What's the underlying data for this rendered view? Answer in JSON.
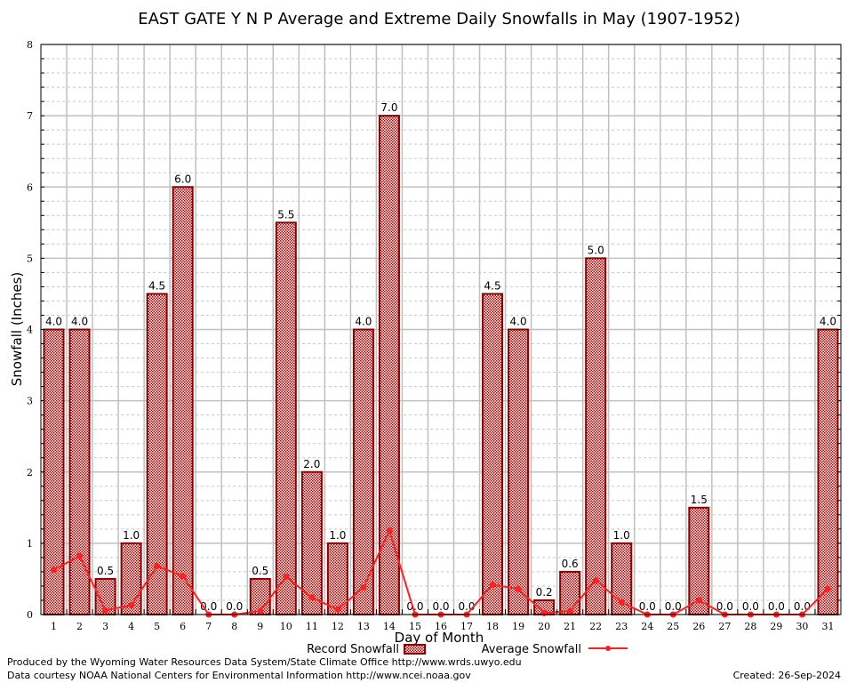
{
  "chart_data": {
    "type": "bar",
    "title": "EAST GATE Y N P Average and Extreme Daily Snowfalls in May (1907-1952)",
    "xlabel": "Day of Month",
    "ylabel": "Snowfall (Inches)",
    "ylim": [
      0,
      8
    ],
    "yticks": [
      0,
      1,
      2,
      3,
      4,
      5,
      6,
      7,
      8
    ],
    "grid": true,
    "categories": [
      "1",
      "2",
      "3",
      "4",
      "5",
      "6",
      "7",
      "8",
      "9",
      "10",
      "11",
      "12",
      "13",
      "14",
      "15",
      "16",
      "17",
      "18",
      "19",
      "20",
      "21",
      "22",
      "23",
      "24",
      "25",
      "26",
      "27",
      "28",
      "29",
      "30",
      "31"
    ],
    "series": [
      {
        "name": "Record Snowfall",
        "type": "bar",
        "color": "#b00000",
        "values": [
          4.0,
          4.0,
          0.5,
          1.0,
          4.5,
          6.0,
          0.0,
          0.0,
          0.5,
          5.5,
          2.0,
          1.0,
          4.0,
          7.0,
          0.0,
          0.0,
          0.0,
          4.5,
          4.0,
          0.2,
          0.6,
          5.0,
          1.0,
          0.0,
          0.0,
          1.5,
          0.0,
          0.0,
          0.0,
          0.0,
          4.0
        ],
        "labels": [
          "4.0",
          "4.0",
          "0.5",
          "1.0",
          "4.5",
          "6.0",
          "0.0",
          "0.0",
          "0.5",
          "5.5",
          "2.0",
          "1.0",
          "4.0",
          "7.0",
          "0.0",
          "0.0",
          "0.0",
          "4.5",
          "4.0",
          "0.2",
          "0.6",
          "5.0",
          "1.0",
          "0.0",
          "0.0",
          "1.5",
          "0.0",
          "0.0",
          "0.0",
          "0.0",
          "4.0"
        ]
      },
      {
        "name": "Average Snowfall",
        "type": "line",
        "color": "#ff2020",
        "values": [
          0.63,
          0.82,
          0.06,
          0.13,
          0.68,
          0.54,
          0.0,
          0.0,
          0.05,
          0.53,
          0.24,
          0.07,
          0.38,
          1.18,
          0.0,
          0.0,
          0.0,
          0.42,
          0.36,
          0.02,
          0.05,
          0.48,
          0.17,
          0.0,
          0.0,
          0.2,
          0.0,
          0.0,
          0.0,
          0.0,
          0.36
        ]
      }
    ],
    "legend": "bottom-center"
  },
  "footer": {
    "produced": "Produced by the Wyoming Water Resources Data System/State Climate Office http://www.wrds.uwyo.edu",
    "courtesy": "Data courtesy NOAA National Centers for Environmental Information http://www.ncei.noaa.gov",
    "created": "Created: 26-Sep-2024"
  }
}
